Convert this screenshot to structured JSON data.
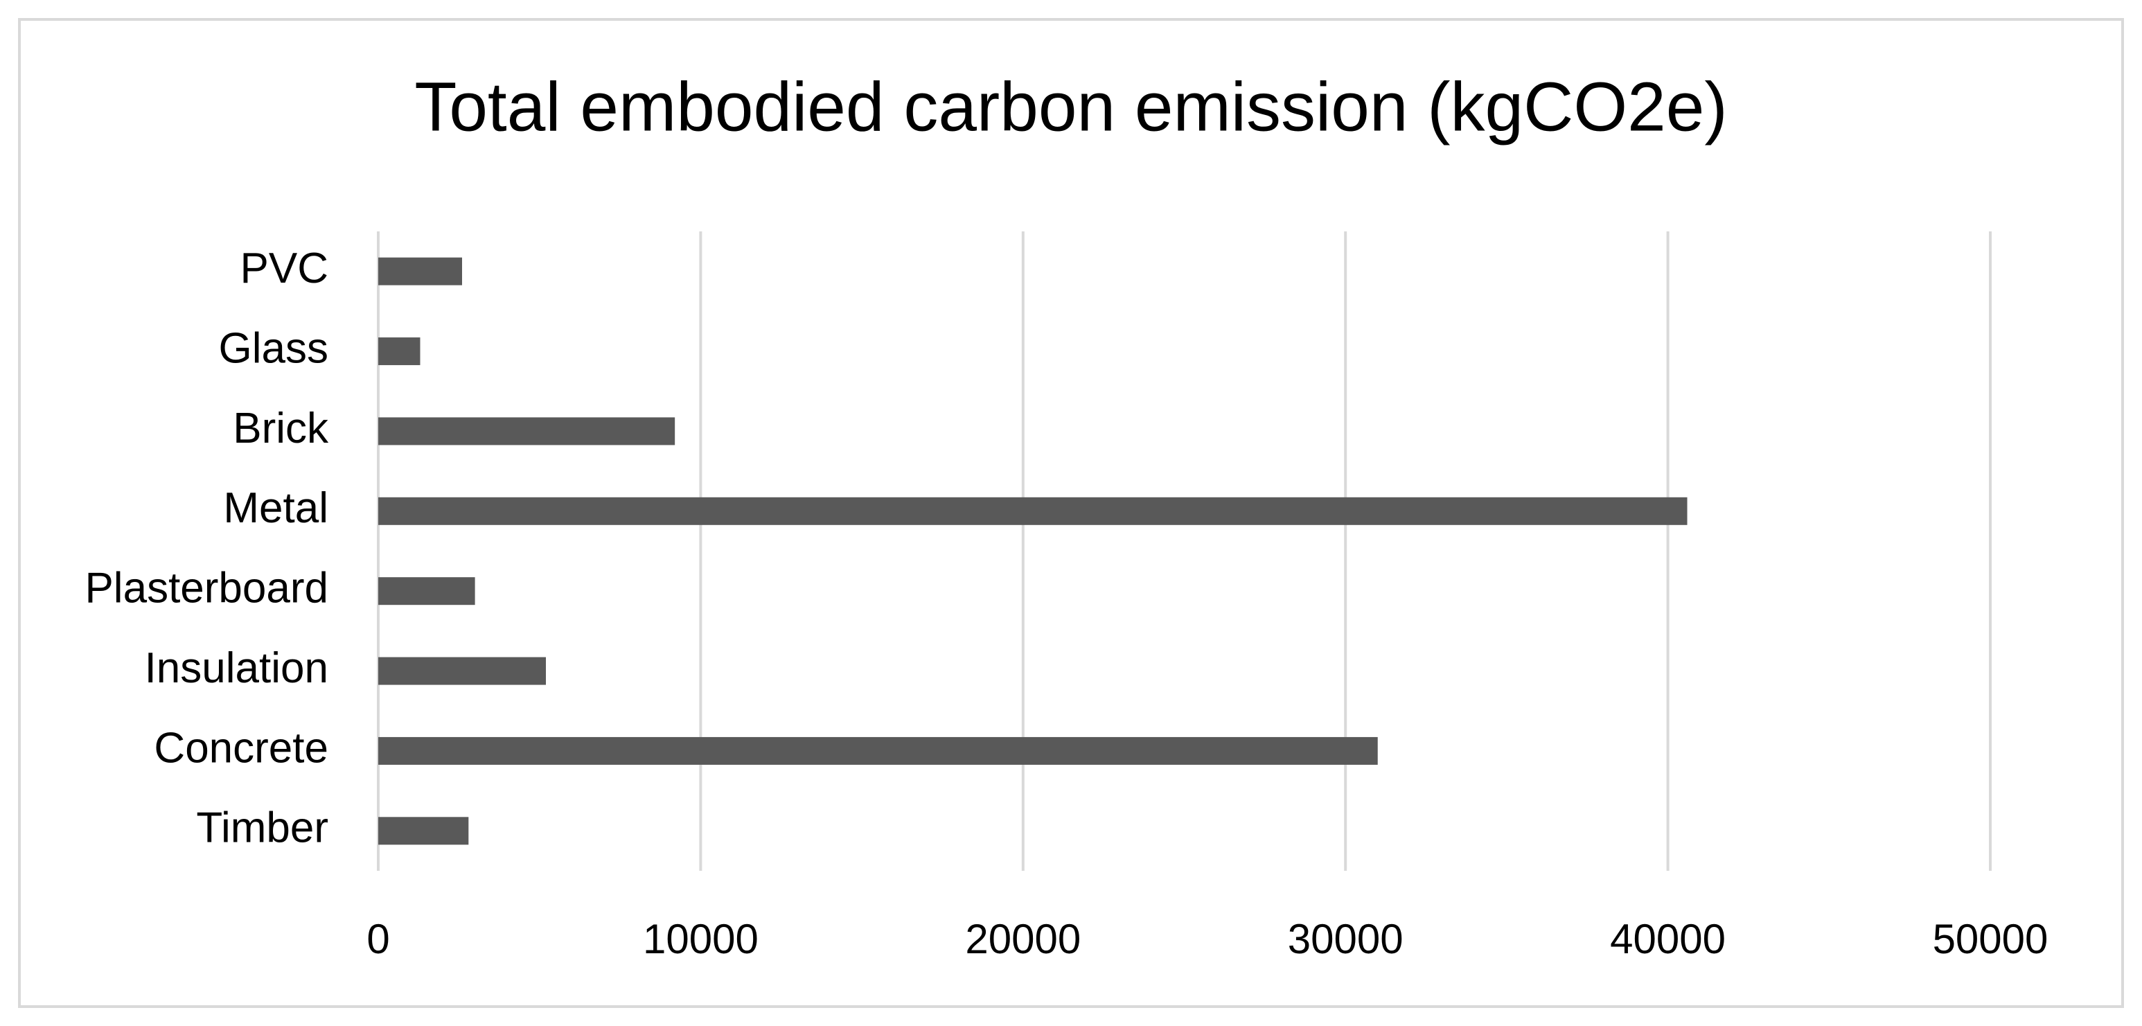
{
  "chart_data": {
    "type": "bar",
    "orientation": "horizontal",
    "title": "Total embodied carbon emission (kgCO2e)",
    "categories": [
      "Timber",
      "Concrete",
      "Insulation",
      "Plasterboard",
      "Metal",
      "Brick",
      "Glass",
      "PVC"
    ],
    "values": [
      2800,
      31000,
      5200,
      3000,
      40600,
      9200,
      1300,
      2600
    ],
    "color": "#595959",
    "xlim": [
      0,
      50000
    ],
    "xticks": [
      0,
      10000,
      20000,
      30000,
      40000,
      50000
    ],
    "grid": true
  }
}
